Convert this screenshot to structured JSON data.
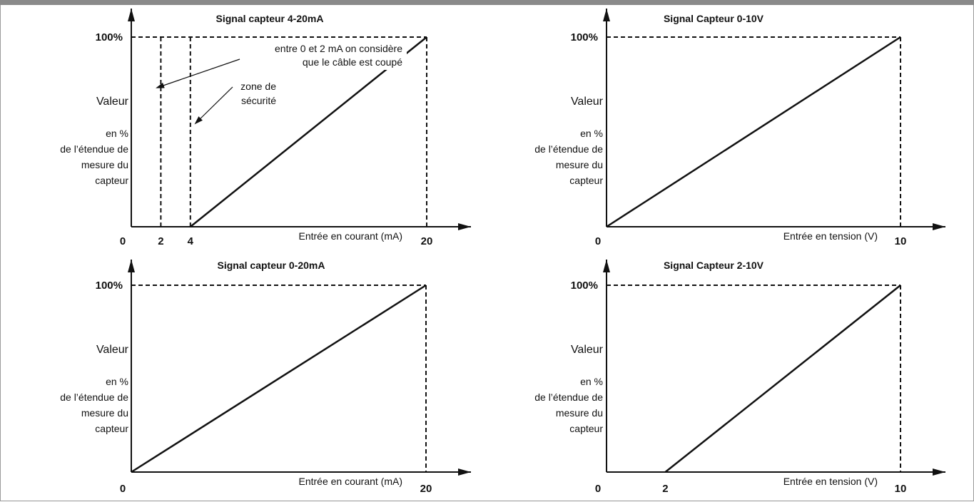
{
  "chart_data": [
    {
      "type": "line",
      "title": "Signal capteur 4-20mA",
      "xlabel": "Entrée en courant (mA)",
      "ylabel": [
        "Valeur",
        "en %",
        "de l’étendue de",
        "mesure du",
        "capteur"
      ],
      "ytick_label": "100%",
      "xtick_labels": [
        "0",
        "2",
        "4",
        "20"
      ],
      "xlim": [
        0,
        20
      ],
      "ylim": [
        0,
        100
      ],
      "series": [
        {
          "x": [
            4,
            20
          ],
          "y": [
            0,
            100
          ]
        }
      ],
      "dashed_verticals": [
        2,
        4,
        20
      ],
      "annotations": [
        {
          "text": [
            "entre 0 et 2 mA on considère",
            "que le câble est coupé"
          ]
        },
        {
          "text": [
            "zone de",
            "sécurité"
          ]
        }
      ]
    },
    {
      "type": "line",
      "title": "Signal Capteur 0-10V",
      "xlabel": "Entrée en tension (V)",
      "ylabel": [
        "Valeur",
        "en %",
        "de l’étendue de",
        "mesure du",
        "capteur"
      ],
      "ytick_label": "100%",
      "xtick_labels": [
        "0",
        "10"
      ],
      "xlim": [
        0,
        10
      ],
      "ylim": [
        0,
        100
      ],
      "series": [
        {
          "x": [
            0,
            10
          ],
          "y": [
            0,
            100
          ]
        }
      ],
      "dashed_verticals": [
        10
      ],
      "annotations": []
    },
    {
      "type": "line",
      "title": "Signal capteur 0-20mA",
      "xlabel": "Entrée en courant (mA)",
      "ylabel": [
        "Valeur",
        "en %",
        "de l’étendue de",
        "mesure du",
        "capteur"
      ],
      "ytick_label": "100%",
      "xtick_labels": [
        "0",
        "20"
      ],
      "xlim": [
        0,
        20
      ],
      "ylim": [
        0,
        100
      ],
      "series": [
        {
          "x": [
            0,
            20
          ],
          "y": [
            0,
            100
          ]
        }
      ],
      "dashed_verticals": [
        20
      ],
      "annotations": []
    },
    {
      "type": "line",
      "title": "Signal Capteur 2-10V",
      "xlabel": "Entrée en tension (V)",
      "ylabel": [
        "Valeur",
        "en %",
        "de l’étendue de",
        "mesure du",
        "capteur"
      ],
      "ytick_label": "100%",
      "xtick_labels": [
        "0",
        "2",
        "10"
      ],
      "xlim": [
        0,
        10
      ],
      "ylim": [
        0,
        100
      ],
      "series": [
        {
          "x": [
            2,
            10
          ],
          "y": [
            0,
            100
          ]
        }
      ],
      "dashed_verticals": [
        10
      ],
      "annotations": []
    }
  ]
}
